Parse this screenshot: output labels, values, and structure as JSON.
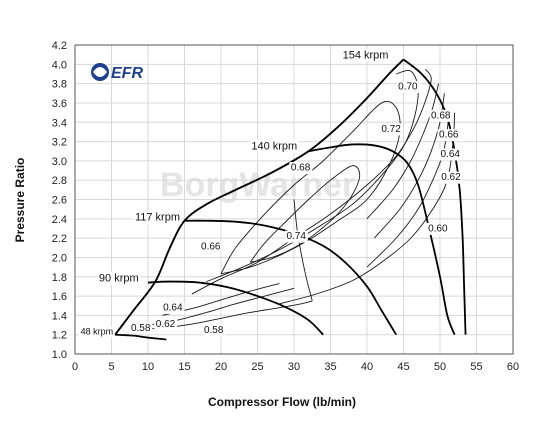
{
  "chart_data": {
    "type": "line",
    "title": "",
    "xlabel": "Compressor Flow (lb/min)",
    "ylabel": "Pressure Ratio",
    "xlim": [
      0,
      60
    ],
    "ylim": [
      1.0,
      4.2
    ],
    "xticks": [
      0,
      5,
      10,
      15,
      20,
      25,
      30,
      35,
      40,
      45,
      50,
      55,
      60
    ],
    "yticks": [
      1.0,
      1.2,
      1.4,
      1.6,
      1.8,
      2.0,
      2.2,
      2.4,
      2.6,
      2.8,
      3.0,
      3.2,
      3.4,
      3.6,
      3.8,
      4.0,
      4.2
    ],
    "xtick_labels": [
      "0",
      "5",
      "10",
      "15",
      "20",
      "25",
      "30",
      "35",
      "40",
      "45",
      "50",
      "55",
      "60"
    ],
    "ytick_labels": [
      "1.0",
      "1.2",
      "1.4",
      "1.6",
      "1.8",
      "2.0",
      "2.2",
      "2.4",
      "2.6",
      "2.8",
      "3.0",
      "3.2",
      "3.4",
      "3.6",
      "3.8",
      "4.0",
      "4.2"
    ],
    "grid": true,
    "logo": "EFR",
    "watermark": "BorgWarner",
    "surge_line": {
      "x": [
        5.5,
        8,
        11,
        13,
        15,
        18,
        22,
        27,
        32,
        36,
        40,
        43,
        45
      ],
      "y": [
        1.2,
        1.45,
        1.75,
        2.1,
        2.38,
        2.55,
        2.7,
        2.88,
        3.1,
        3.35,
        3.65,
        3.9,
        4.05
      ]
    },
    "speed_lines": [
      {
        "label": "48 krpm",
        "x": [
          5.5,
          8,
          10,
          12.5
        ],
        "y": [
          1.2,
          1.19,
          1.17,
          1.15
        ]
      },
      {
        "label": "90 krpm",
        "x": [
          10,
          13,
          17,
          21,
          25,
          29,
          32,
          34
        ],
        "y": [
          1.74,
          1.75,
          1.74,
          1.69,
          1.6,
          1.48,
          1.35,
          1.2
        ]
      },
      {
        "label": "117 krpm",
        "x": [
          15,
          18,
          22,
          26,
          30,
          34,
          37,
          40,
          42,
          44
        ],
        "y": [
          2.38,
          2.38,
          2.37,
          2.33,
          2.25,
          2.12,
          1.95,
          1.7,
          1.45,
          1.2
        ]
      },
      {
        "label": "140 krpm",
        "x": [
          32,
          35,
          38,
          41,
          43.5,
          45.5,
          47,
          48.5,
          50,
          51,
          52
        ],
        "y": [
          3.1,
          3.14,
          3.17,
          3.16,
          3.1,
          2.98,
          2.75,
          2.3,
          1.8,
          1.4,
          1.2
        ]
      },
      {
        "label": "154 krpm",
        "x": [
          45,
          47.5,
          49.5,
          51,
          52,
          52.7,
          53.1,
          53.3,
          53.5
        ],
        "y": [
          4.05,
          3.9,
          3.7,
          3.45,
          3.1,
          2.7,
          2.2,
          1.7,
          1.2
        ]
      }
    ],
    "efficiency_islands": [
      {
        "label": "0.58",
        "x": [
          8,
          12,
          16,
          20,
          24,
          28,
          31,
          32.5
        ],
        "y": [
          1.26,
          1.27,
          1.31,
          1.37,
          1.43,
          1.48,
          1.52,
          1.55
        ]
      },
      {
        "label": "0.58",
        "x": [
          32.5,
          31.5,
          30.5,
          30
        ],
        "y": [
          1.55,
          1.85,
          2.25,
          2.6
        ]
      },
      {
        "label": "0.62",
        "x": [
          10,
          14,
          18,
          22,
          26,
          30
        ],
        "y": [
          1.3,
          1.35,
          1.43,
          1.52,
          1.6,
          1.68
        ]
      },
      {
        "label": "0.64",
        "x": [
          12,
          16,
          20,
          24,
          28
        ],
        "y": [
          1.4,
          1.47,
          1.56,
          1.65,
          1.73
        ]
      },
      {
        "label": "0.60",
        "x": [
          28,
          33,
          38,
          42,
          46,
          49,
          51,
          51.8,
          52
        ],
        "y": [
          1.52,
          1.62,
          1.76,
          1.95,
          2.2,
          2.5,
          2.8,
          3.2,
          3.5
        ]
      },
      {
        "label": "0.62",
        "x": [
          40,
          44,
          47,
          49,
          50.5,
          51.2
        ],
        "y": [
          1.9,
          2.2,
          2.5,
          2.8,
          3.1,
          3.45
        ]
      },
      {
        "label": "0.64",
        "x": [
          41,
          44.5,
          47,
          48.8,
          50,
          50.6
        ],
        "y": [
          2.2,
          2.5,
          2.8,
          3.1,
          3.4,
          3.7
        ]
      },
      {
        "label": "0.66",
        "x": [
          40,
          43.5,
          46,
          47.8,
          49,
          49.8
        ],
        "y": [
          2.4,
          2.7,
          3.0,
          3.3,
          3.55,
          3.8
        ]
      },
      {
        "label": "0.68",
        "x": [
          16,
          20,
          25,
          30,
          35,
          40,
          44,
          46.5,
          48,
          48.8,
          48
        ],
        "y": [
          1.62,
          1.78,
          1.95,
          2.2,
          2.45,
          2.75,
          3.05,
          3.35,
          3.62,
          3.85,
          3.95
        ]
      },
      {
        "label": "0.70",
        "x": [
          18,
          23,
          28,
          33,
          38,
          42,
          45,
          46.5,
          47,
          46,
          44
        ],
        "y": [
          1.75,
          1.9,
          2.08,
          2.3,
          2.55,
          2.85,
          3.15,
          3.45,
          3.75,
          3.93,
          3.9
        ]
      },
      {
        "label": "0.72",
        "x": [
          20,
          24,
          28,
          32,
          36,
          40,
          43,
          44.5,
          44,
          42,
          38,
          34,
          30,
          26,
          22,
          20
        ],
        "y": [
          1.83,
          1.9,
          2.02,
          2.18,
          2.38,
          2.6,
          2.95,
          3.3,
          3.55,
          3.6,
          3.3,
          3.0,
          2.75,
          2.45,
          2.1,
          1.83
        ]
      },
      {
        "label": "0.74",
        "x": [
          24,
          27,
          30,
          33,
          36,
          38,
          39,
          38,
          35,
          32,
          29,
          26,
          24
        ],
        "y": [
          1.95,
          2.0,
          2.1,
          2.25,
          2.45,
          2.65,
          2.85,
          2.95,
          2.8,
          2.6,
          2.38,
          2.15,
          1.95
        ]
      }
    ],
    "efficiency_label_values": [
      "0.58",
      "0.58",
      "0.62",
      "0.64",
      "0.66",
      "0.68",
      "0.70",
      "0.72",
      "0.74",
      "0.60",
      "0.62",
      "0.64",
      "0.66",
      "0.68"
    ]
  }
}
